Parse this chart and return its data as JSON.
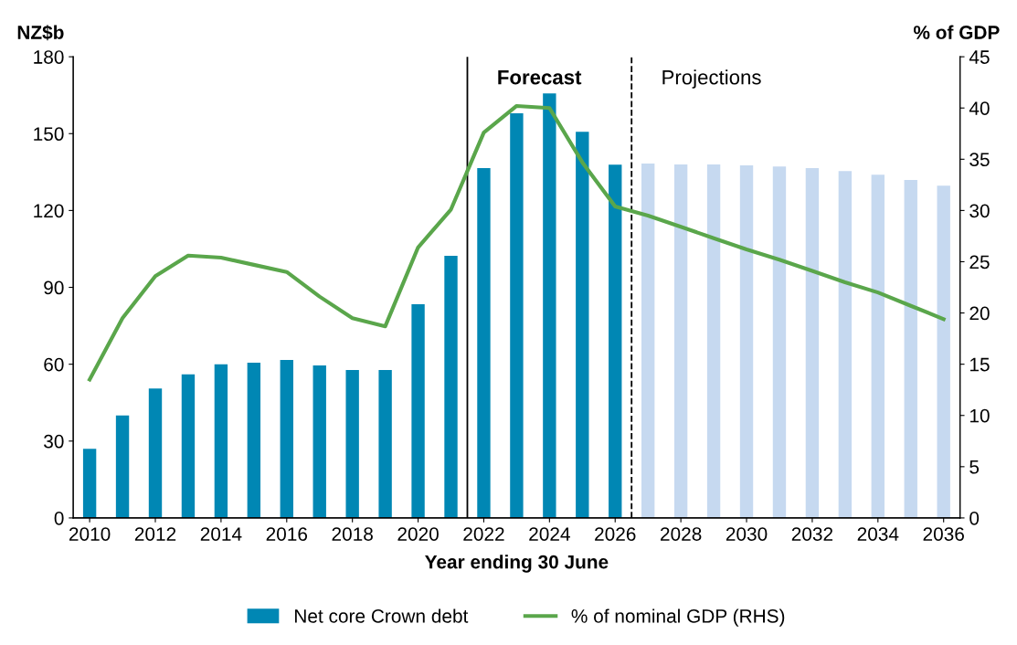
{
  "chart_data": {
    "type": "bar",
    "xlabel": "Year ending 30 June",
    "ylabel": "NZ$b",
    "y2label": "% of GDP",
    "x": [
      2010,
      2011,
      2012,
      2013,
      2014,
      2015,
      2016,
      2017,
      2018,
      2019,
      2020,
      2021,
      2022,
      2023,
      2024,
      2025,
      2026,
      2027,
      2028,
      2029,
      2030,
      2031,
      2032,
      2033,
      2034,
      2035,
      2036
    ],
    "series": [
      {
        "name": "Net core Crown debt",
        "color": "#0087b4",
        "colors": [
          "#0087b4",
          "#0087b4",
          "#0087b4",
          "#0087b4",
          "#0087b4",
          "#0087b4",
          "#0087b4",
          "#0087b4",
          "#0087b4",
          "#0087b4",
          "#0087b4",
          "#0087b4",
          "#0087b4",
          "#0087b4",
          "#0087b4",
          "#0087b4",
          "#0087b4",
          "#c6d9f0",
          "#c6d9f0",
          "#c6d9f0",
          "#c6d9f0",
          "#c6d9f0",
          "#c6d9f0",
          "#c6d9f0",
          "#c6d9f0",
          "#c6d9f0",
          "#c6d9f0"
        ],
        "values": [
          27,
          40,
          50.5,
          56,
          60,
          60.6,
          61.7,
          59.5,
          57.7,
          57.7,
          83.4,
          102.3,
          136.5,
          157.9,
          165.7,
          150.7,
          137.9,
          138.3,
          138,
          138,
          137.6,
          137.2,
          136.5,
          135.4,
          134,
          131.9,
          129.7
        ]
      },
      {
        "name": "% of nominal GDP (RHS)",
        "type": "line",
        "axis": "y2",
        "color": "#5aa64b",
        "values": [
          13.5,
          19.5,
          23.6,
          25.6,
          25.4,
          24.7,
          24.0,
          21.6,
          19.5,
          18.7,
          26.4,
          30.1,
          37.6,
          40.2,
          40.0,
          34.7,
          30.4,
          29.5,
          28.4,
          27.3,
          26.2,
          25.2,
          24.1,
          23.0,
          22.0,
          20.7,
          19.4
        ]
      }
    ],
    "xlim": [
      2009.5,
      2036.5
    ],
    "xticks": [
      2010,
      2012,
      2014,
      2016,
      2018,
      2020,
      2022,
      2024,
      2026,
      2028,
      2030,
      2032,
      2034,
      2036
    ],
    "ylim": [
      0,
      180
    ],
    "yticks": [
      0,
      30,
      60,
      90,
      120,
      150,
      180
    ],
    "y2lim": [
      0,
      45
    ],
    "y2ticks": [
      0,
      5,
      10,
      15,
      20,
      25,
      30,
      35,
      40,
      45
    ],
    "ref_lines": [
      {
        "axis": "x",
        "value": 2021.5,
        "label": "Forecast",
        "color": "#000000",
        "line_style": "solid"
      },
      {
        "axis": "x",
        "value": 2026.5,
        "label": "Projections",
        "color": "#000000",
        "line_style": "dashed"
      }
    ],
    "legend": "bottom",
    "grid": false,
    "marker": "none"
  }
}
